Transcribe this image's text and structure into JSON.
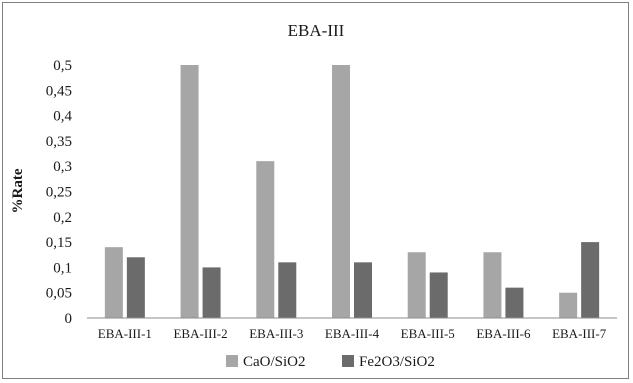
{
  "chart_data": {
    "type": "bar",
    "title": "EBA-III",
    "ylabel": "%Rate",
    "xlabel": "",
    "categories": [
      "EBA-III-1",
      "EBA-III-2",
      "EBA-III-3",
      "EBA-III-4",
      "EBA-III-5",
      "EBA-III-6",
      "EBA-III-7"
    ],
    "series": [
      {
        "name": "CaO/SiO2",
        "color": "#a6a6a6",
        "values": [
          0.14,
          0.5,
          0.31,
          0.5,
          0.13,
          0.13,
          0.05
        ]
      },
      {
        "name": "Fe2O3/SiO2",
        "color": "#6b6b6b",
        "values": [
          0.12,
          0.1,
          0.11,
          0.11,
          0.09,
          0.06,
          0.15
        ]
      }
    ],
    "ylim": [
      0,
      0.5
    ],
    "yticks": [
      "0",
      "0,05",
      "0,1",
      "0,15",
      "0,2",
      "0,25",
      "0,3",
      "0,35",
      "0,4",
      "0,45",
      "0,5"
    ],
    "grid": false,
    "legend_position": "bottom"
  }
}
